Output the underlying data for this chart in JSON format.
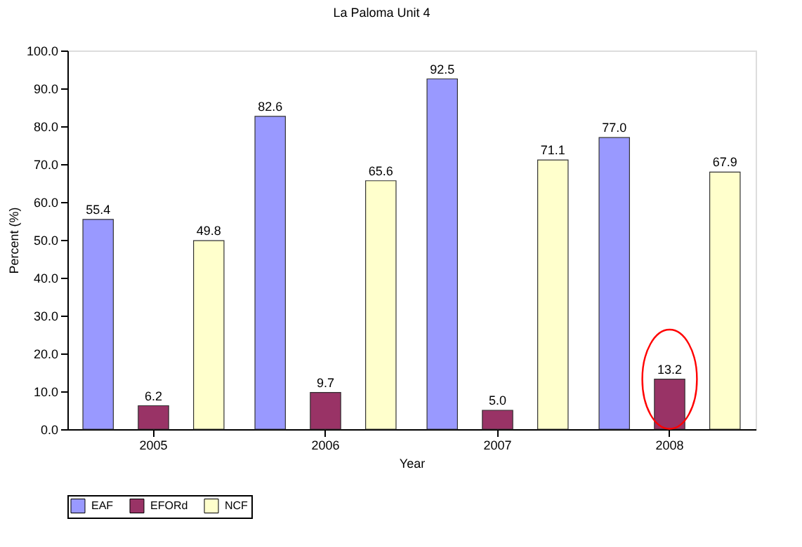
{
  "chart_data": {
    "type": "bar",
    "title": "La Paloma Unit 4",
    "xlabel": "Year",
    "ylabel": "Percent (%)",
    "categories": [
      "2005",
      "2006",
      "2007",
      "2008"
    ],
    "series": [
      {
        "name": "EAF",
        "color": "#9999ff",
        "values": [
          55.4,
          82.6,
          92.5,
          77.0
        ],
        "value_labels": [
          "55.4",
          "82.6",
          "92.5",
          "77.0"
        ]
      },
      {
        "name": "EFORd",
        "color": "#993366",
        "values": [
          6.2,
          9.7,
          5.0,
          13.2
        ],
        "value_labels": [
          "6.2",
          "9.7",
          "5.0",
          "13.2"
        ]
      },
      {
        "name": "NCF",
        "color": "#ffffcc",
        "values": [
          49.8,
          65.6,
          71.1,
          67.9
        ],
        "value_labels": [
          "49.8",
          "65.6",
          "71.1",
          "67.9"
        ]
      }
    ],
    "ylim": [
      0,
      100
    ],
    "yticks": [
      {
        "value": 0,
        "label": "0.0"
      },
      {
        "value": 10,
        "label": "10.0"
      },
      {
        "value": 20,
        "label": "20.0"
      },
      {
        "value": 30,
        "label": "30.0"
      },
      {
        "value": 40,
        "label": "40.0"
      },
      {
        "value": 50,
        "label": "50.0"
      },
      {
        "value": 60,
        "label": "60.0"
      },
      {
        "value": 70,
        "label": "70.0"
      },
      {
        "value": 80,
        "label": "80.0"
      },
      {
        "value": 90,
        "label": "90.0"
      },
      {
        "value": 100,
        "label": "100.0"
      }
    ],
    "grid": false,
    "legend": "bottom"
  }
}
